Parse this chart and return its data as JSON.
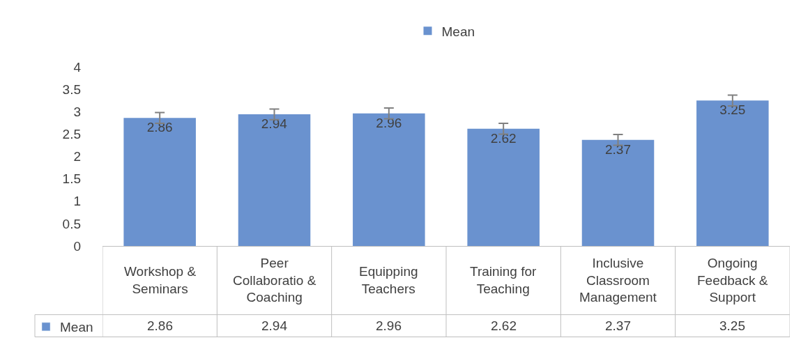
{
  "chart_data": {
    "type": "bar",
    "categories": [
      "Workshop & Seminars",
      "Peer Collaboratio & Coaching",
      "Equipping Teachers",
      "Training for Teaching",
      "Inclusive Classroom Management",
      "Ongoing Feedback & Support"
    ],
    "series": [
      {
        "name": "Mean",
        "color": "#6a92cf",
        "values": [
          2.86,
          2.94,
          2.96,
          2.62,
          2.37,
          3.25
        ],
        "errors": [
          0.12,
          0.12,
          0.12,
          0.12,
          0.12,
          0.12
        ],
        "value_labels": [
          "2.86",
          "2.94",
          "2.96",
          "2.62",
          "2.37",
          "3.25"
        ]
      }
    ],
    "ylim": [
      0,
      4
    ],
    "yticks": [
      0,
      0.5,
      1,
      1.5,
      2,
      2.5,
      3,
      3.5,
      4
    ],
    "data_labels": true,
    "legend": "top"
  }
}
